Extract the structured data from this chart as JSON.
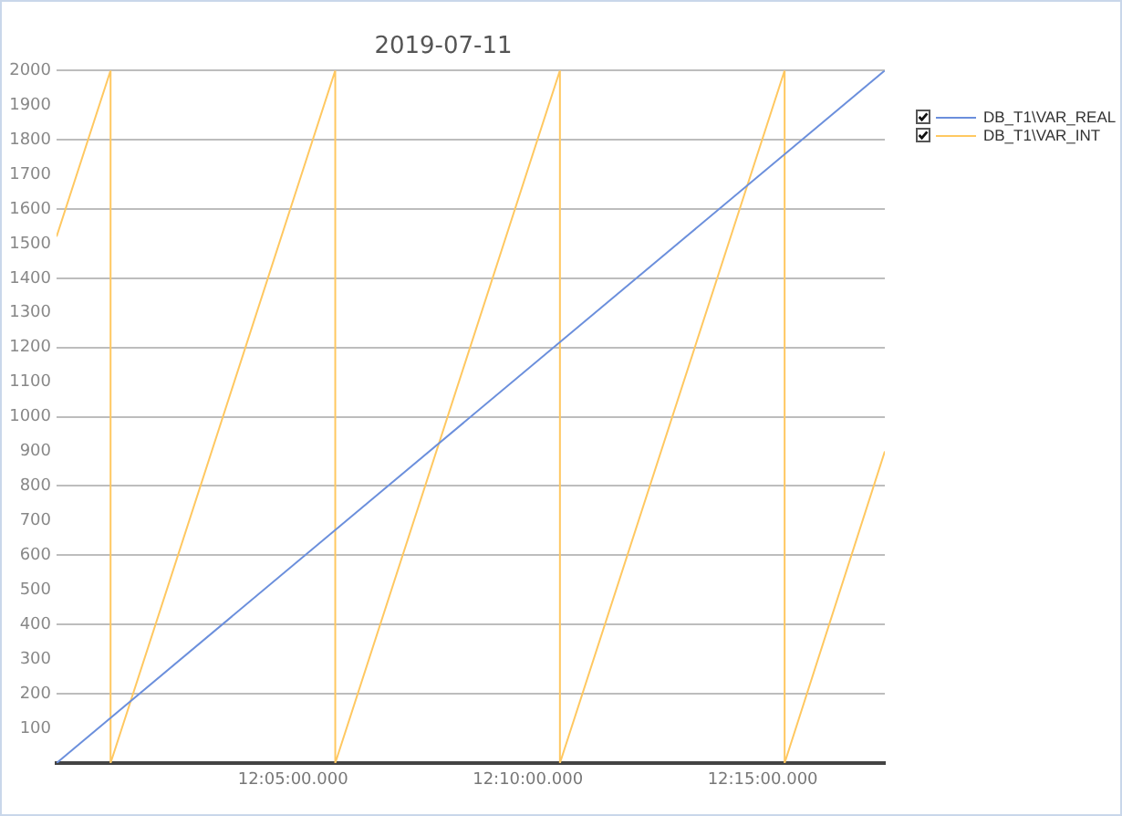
{
  "chart_data": {
    "type": "line",
    "title": "2019-07-11",
    "series": [
      {
        "name": "DB_T1\\VAR_REAL",
        "color": "#6b8fdc",
        "x": [
          "2019-07-11T11:59:58",
          "2019-07-11T12:17:36"
        ],
        "values": [
          0,
          2000
        ]
      },
      {
        "name": "DB_T1\\VAR_INT",
        "color": "#ffc861",
        "x": [
          "2019-07-11T11:59:58",
          "2019-07-11T12:01:07",
          "2019-07-11T12:01:07",
          "2019-07-11T12:05:54",
          "2019-07-11T12:05:54",
          "2019-07-11T12:10:41",
          "2019-07-11T12:10:41",
          "2019-07-11T12:15:28",
          "2019-07-11T12:15:28",
          "2019-07-11T12:17:36"
        ],
        "values": [
          1520,
          2000,
          0,
          2000,
          0,
          2000,
          0,
          2000,
          0,
          900
        ]
      }
    ],
    "xlim": [
      "2019-07-11T11:59:58",
      "2019-07-11T12:17:36"
    ],
    "xticks": [
      {
        "value": "2019-07-11T12:05",
        "label": "12:05:00.000"
      },
      {
        "value": "2019-07-11T12:10",
        "label": "12:10:00.000"
      },
      {
        "value": "2019-07-11T12:15",
        "label": "12:15:00.000"
      }
    ],
    "ylim": [
      0,
      2000
    ],
    "yticks": [
      100,
      200,
      300,
      400,
      500,
      600,
      700,
      800,
      900,
      1000,
      1100,
      1200,
      1300,
      1400,
      1500,
      1600,
      1700,
      1800,
      1900,
      2000
    ],
    "grid": "y",
    "legend": "top right",
    "marker": "none",
    "line_style": "solid"
  }
}
